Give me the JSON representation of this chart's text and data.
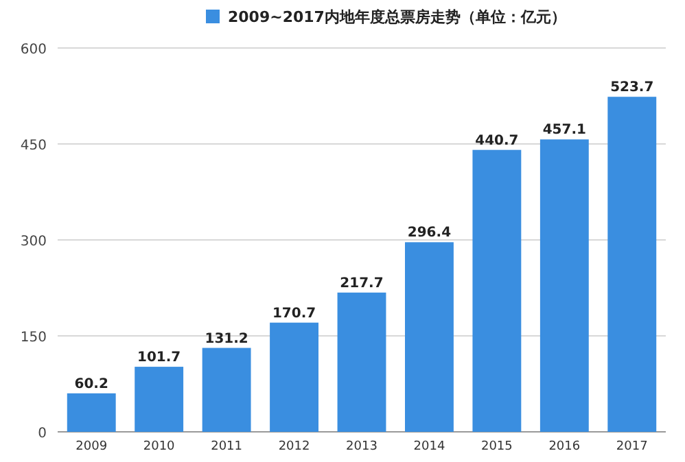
{
  "chart_data": {
    "type": "bar",
    "categories": [
      "2009",
      "2010",
      "2011",
      "2012",
      "2013",
      "2014",
      "2015",
      "2016",
      "2017"
    ],
    "series": [
      {
        "name": "2009~2017内地年度总票房走势（单位：亿元）",
        "color": "#3a8ee0",
        "values": [
          60.2,
          101.7,
          131.2,
          170.7,
          217.7,
          296.4,
          440.7,
          457.1,
          523.7
        ]
      }
    ],
    "ylim": [
      0,
      600
    ],
    "yticks": [
      0,
      150,
      300,
      450,
      600
    ],
    "grid": "y",
    "legend": "top",
    "data_labels": true
  }
}
